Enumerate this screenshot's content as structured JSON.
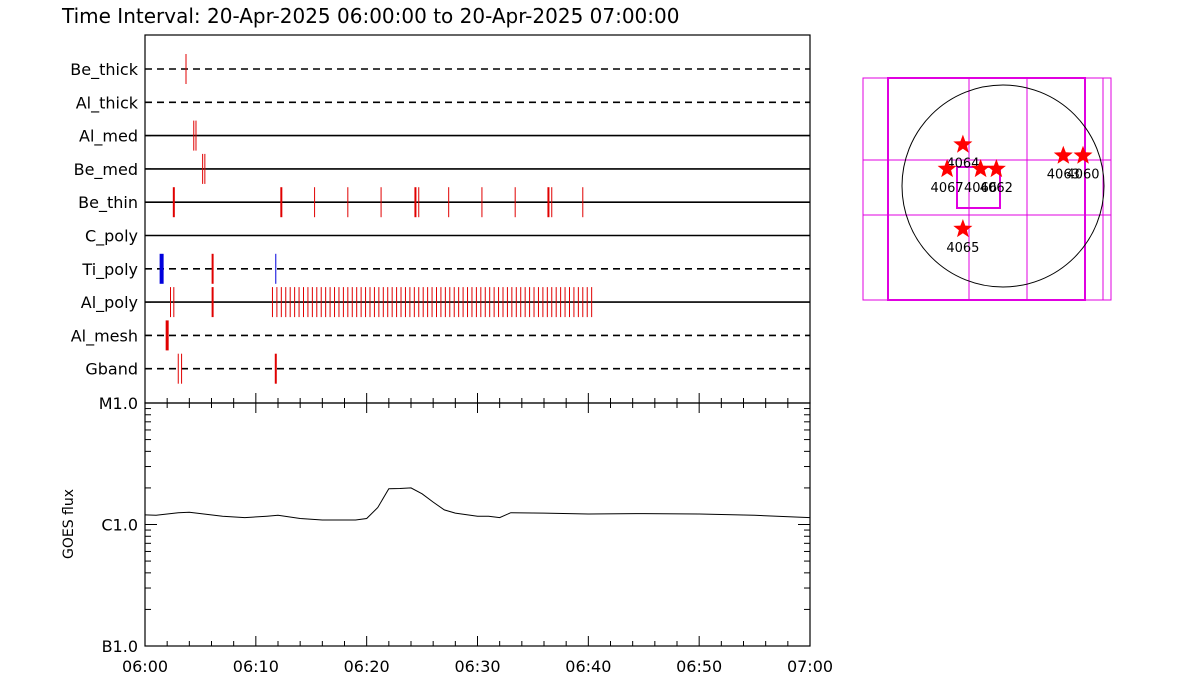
{
  "title": "Time Interval: 20-Apr-2025 06:00:00 to 20-Apr-2025 07:00:00",
  "colors": {
    "event": "#e00000",
    "event_blue": "#0000dd",
    "fov": "#e000e0",
    "star": "#ff0000",
    "axis": "#000000"
  },
  "chart_data": [
    {
      "type": "timeline",
      "x_range_minutes": [
        0,
        60
      ],
      "tracks": [
        {
          "name": "Be_thick",
          "style": "dashed",
          "events": [
            {
              "t": 3.7,
              "w": 1,
              "color": "red"
            }
          ]
        },
        {
          "name": "Al_thick",
          "style": "dashed",
          "events": []
        },
        {
          "name": "Al_med",
          "style": "solid",
          "events": [
            {
              "t": 4.4,
              "w": 1,
              "color": "red"
            },
            {
              "t": 4.6,
              "w": 1,
              "color": "red"
            }
          ]
        },
        {
          "name": "Be_med",
          "style": "solid",
          "events": [
            {
              "t": 5.2,
              "w": 1,
              "color": "red"
            },
            {
              "t": 5.4,
              "w": 1,
              "color": "red"
            }
          ]
        },
        {
          "name": "Be_thin",
          "style": "solid",
          "events": [
            {
              "t": 2.6,
              "w": 2,
              "color": "red"
            },
            {
              "t": 12.3,
              "w": 2,
              "color": "red"
            },
            {
              "t": 15.3,
              "w": 1,
              "color": "red"
            },
            {
              "t": 18.3,
              "w": 1,
              "color": "red"
            },
            {
              "t": 21.3,
              "w": 1,
              "color": "red"
            },
            {
              "t": 24.4,
              "w": 2,
              "color": "red"
            },
            {
              "t": 24.7,
              "w": 1,
              "color": "red"
            },
            {
              "t": 27.4,
              "w": 1,
              "color": "red"
            },
            {
              "t": 30.4,
              "w": 1,
              "color": "red"
            },
            {
              "t": 33.4,
              "w": 1,
              "color": "red"
            },
            {
              "t": 36.4,
              "w": 2,
              "color": "red"
            },
            {
              "t": 36.7,
              "w": 1,
              "color": "red"
            },
            {
              "t": 39.5,
              "w": 1,
              "color": "red"
            }
          ]
        },
        {
          "name": "C_poly",
          "style": "solid",
          "events": []
        },
        {
          "name": "Ti_poly",
          "style": "dashed",
          "events": [
            {
              "t": 1.5,
              "w": 4,
              "color": "blue"
            },
            {
              "t": 6.1,
              "w": 2,
              "color": "red"
            },
            {
              "t": 11.8,
              "w": 1,
              "color": "blue"
            }
          ]
        },
        {
          "name": "Al_poly",
          "style": "solid",
          "events": [
            {
              "t": 2.3,
              "w": 1,
              "color": "red"
            },
            {
              "t": 2.6,
              "w": 1,
              "color": "red"
            },
            {
              "t": 6.1,
              "w": 2,
              "color": "red"
            }
          ],
          "dense_band": {
            "start": 11.5,
            "end": 40.6,
            "step": 0.4,
            "color": "red"
          }
        },
        {
          "name": "Al_mesh",
          "style": "dashed",
          "events": [
            {
              "t": 2.0,
              "w": 3,
              "color": "red"
            }
          ]
        },
        {
          "name": "Gband",
          "style": "dashed",
          "events": [
            {
              "t": 3.0,
              "w": 1,
              "color": "red"
            },
            {
              "t": 3.3,
              "w": 1,
              "color": "red"
            },
            {
              "t": 11.8,
              "w": 2,
              "color": "red"
            }
          ]
        }
      ]
    },
    {
      "type": "line",
      "ylabel": "GOES flux",
      "yscale": "log",
      "ylim": [
        1e-07,
        1e-05
      ],
      "y_ticks": [
        {
          "label": "M1.0",
          "value": 1e-05
        },
        {
          "label": "C1.0",
          "value": 1e-06
        },
        {
          "label": "B1.0",
          "value": 1e-07
        }
      ],
      "x_tick_labels": [
        "06:00",
        "06:10",
        "06:20",
        "06:30",
        "06:40",
        "06:50",
        "07:00"
      ],
      "x_minutes": [
        0,
        1,
        3,
        4,
        7,
        9,
        11,
        12,
        14,
        16,
        19,
        20,
        21,
        22,
        23,
        24,
        25,
        26,
        27,
        28,
        30,
        31,
        32,
        33,
        36,
        40,
        45,
        50,
        55,
        60
      ],
      "y_flux": [
        1.2e-06,
        1.19e-06,
        1.25e-06,
        1.26e-06,
        1.17e-06,
        1.14e-06,
        1.17e-06,
        1.19e-06,
        1.12e-06,
        1.09e-06,
        1.09e-06,
        1.12e-06,
        1.38e-06,
        1.97e-06,
        1.98e-06,
        2e-06,
        1.79e-06,
        1.53e-06,
        1.32e-06,
        1.24e-06,
        1.17e-06,
        1.17e-06,
        1.14e-06,
        1.25e-06,
        1.24e-06,
        1.22e-06,
        1.23e-06,
        1.22e-06,
        1.19e-06,
        1.14e-06
      ]
    },
    {
      "type": "scatter",
      "note": "solar disk map with active regions",
      "regions": [
        {
          "label": "4064",
          "x": 0.38,
          "y": 0.3
        },
        {
          "label": "4067",
          "x": 0.3,
          "y": 0.41
        },
        {
          "label": "4066",
          "x": 0.47,
          "y": 0.41
        },
        {
          "label": "4062",
          "x": 0.55,
          "y": 0.41
        },
        {
          "label": "4065",
          "x": 0.38,
          "y": 0.68
        },
        {
          "label": "4063",
          "x": 0.89,
          "y": 0.35
        },
        {
          "label": "4060",
          "x": 0.99,
          "y": 0.35
        }
      ]
    }
  ]
}
